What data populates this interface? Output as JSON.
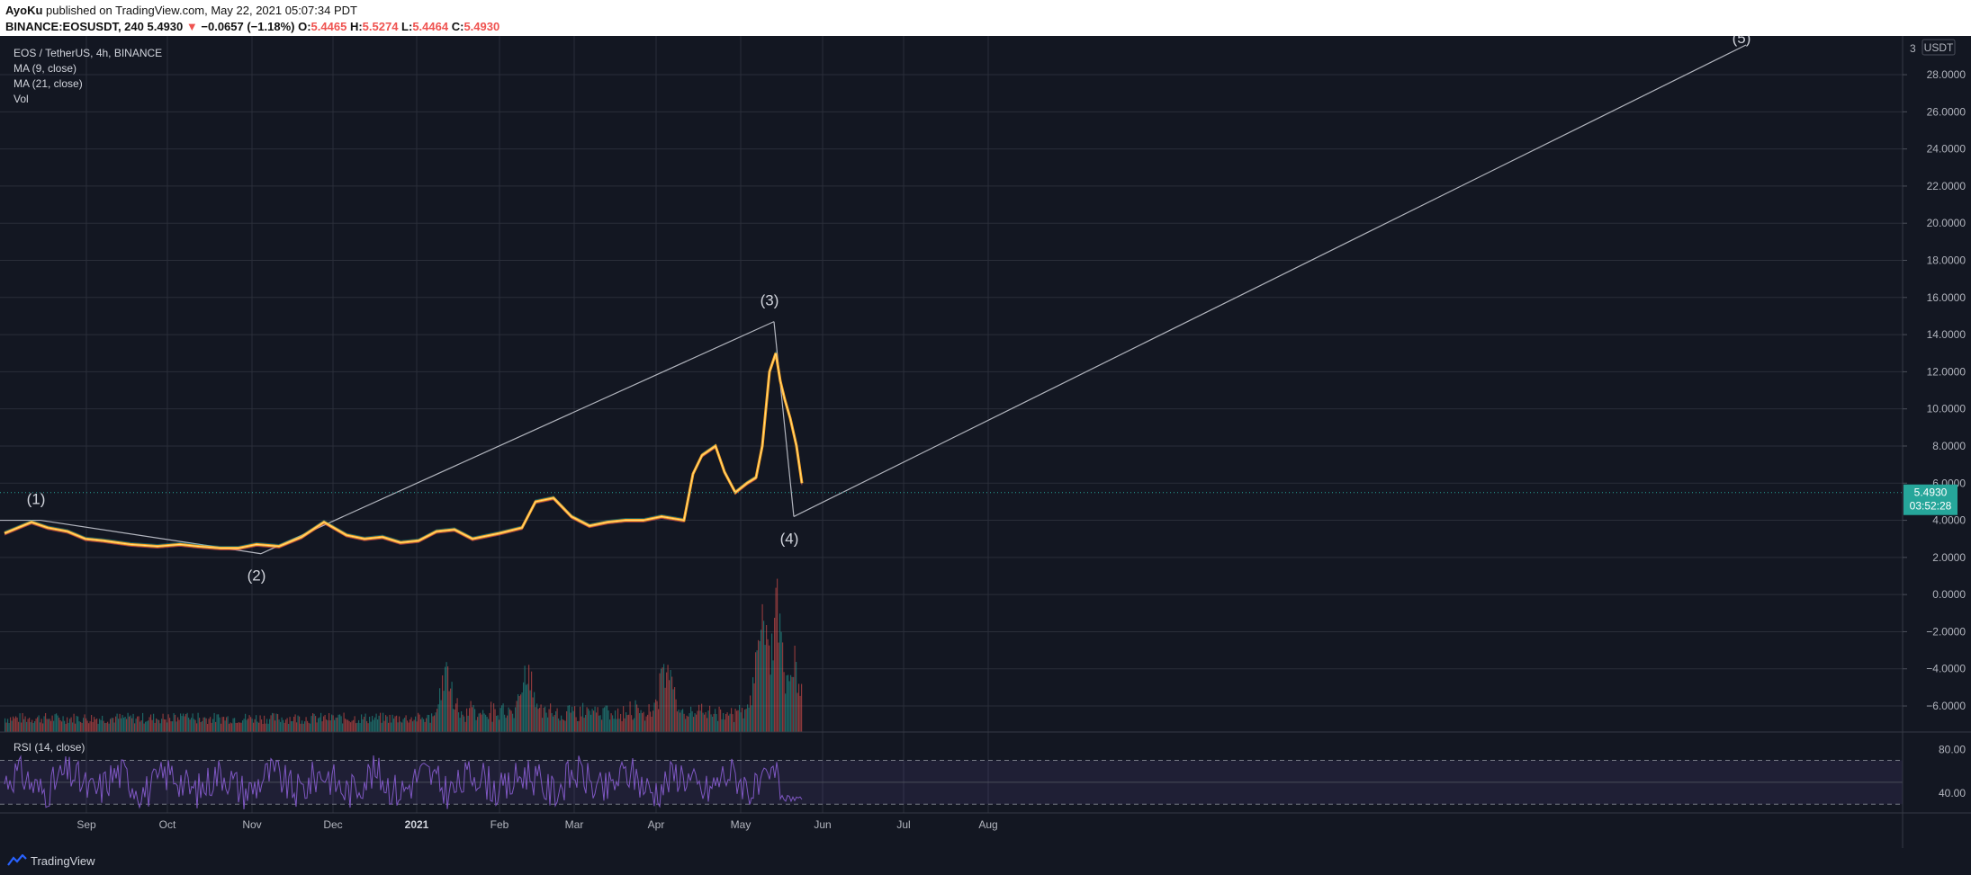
{
  "header": {
    "author": "AyoKu",
    "published": "published on TradingView.com, May 22, 2021 05:07:34 PDT",
    "symbol": "BINANCE:EOSUSDT, 240",
    "price": "5.4930",
    "change_arrow": "▼",
    "change": "−0.0657 (−1.18%)",
    "o_label": "O:",
    "o_value": "5.4465",
    "h_label": "H:",
    "h_value": "5.5274",
    "l_label": "L:",
    "l_value": "5.4464",
    "c_label": "C:",
    "c_value": "5.4930"
  },
  "legend": {
    "title": "EOS / TetherUS, 4h, BINANCE",
    "ma9": "MA (9, close)",
    "ma21": "MA (21, close)",
    "vol": "Vol",
    "rsi": "RSI (14, close)"
  },
  "price_axis": {
    "currency": "USDT",
    "last_price": "5.4930",
    "countdown": "03:52:28",
    "cut_label": "3"
  },
  "footer": {
    "brand": "TradingView"
  },
  "colors": {
    "background": "#131722",
    "grid": "#2a2e39",
    "price_line": "#ffa726",
    "wave_line": "#b2b5be",
    "rsi": "#7e57c2",
    "last_price_badge": "#26a69a",
    "down": "#ef5350",
    "up": "#26a69a"
  },
  "chart_data": [
    {
      "type": "line",
      "title": "EOS / TetherUS, 4h, BINANCE",
      "y_ticks": [
        "28.0000",
        "26.0000",
        "24.0000",
        "22.0000",
        "20.0000",
        "18.0000",
        "16.0000",
        "14.0000",
        "12.0000",
        "10.0000",
        "8.0000",
        "6.0000",
        "4.0000",
        "2.0000",
        "0.0000",
        "−2.0000",
        "−4.0000",
        "−6.0000"
      ],
      "ylim": [
        -7.5,
        29.6
      ],
      "x_ticks": [
        "Sep",
        "Oct",
        "Nov",
        "Dec",
        "2021",
        "Feb",
        "Mar",
        "Apr",
        "May",
        "Jun",
        "Jul",
        "Aug"
      ],
      "grid": true,
      "series": [
        {
          "name": "EOS / TetherUS",
          "x": [
            0,
            10,
            30,
            48,
            70,
            90,
            110,
            140,
            170,
            195,
            215,
            240,
            260,
            280,
            305,
            330,
            355,
            380,
            400,
            420,
            440,
            460,
            480,
            500,
            520,
            550,
            575,
            590,
            610,
            630,
            650,
            670,
            690,
            710,
            730,
            755,
            765,
            775,
            790,
            800,
            812,
            825,
            835,
            842,
            850,
            857,
            862,
            867,
            873,
            880,
            886
          ],
          "y": [
            3.3,
            3.5,
            3.9,
            3.6,
            3.4,
            3.0,
            2.9,
            2.7,
            2.6,
            2.7,
            2.6,
            2.5,
            2.5,
            2.7,
            2.6,
            3.1,
            3.9,
            3.2,
            3.0,
            3.1,
            2.8,
            2.9,
            3.4,
            3.5,
            3.0,
            3.3,
            3.6,
            5.0,
            5.2,
            4.2,
            3.7,
            3.9,
            4.0,
            4.0,
            4.2,
            4.0,
            6.5,
            7.5,
            8.0,
            6.6,
            5.5,
            6.0,
            6.3,
            8.0,
            12.0,
            13.0,
            11.5,
            10.5,
            9.5,
            8.0,
            6.0
          ]
        }
      ],
      "last_value": 5.493,
      "wave_points": [
        {
          "label": "(1)",
          "x": 40,
          "y": 4.0
        },
        {
          "label": "(2)",
          "x": 285,
          "y": 2.2
        },
        {
          "label": "(3)",
          "x": 855,
          "y": 14.7
        },
        {
          "label": "(4)",
          "x": 877,
          "y": 4.2
        },
        {
          "label": "(5)",
          "x": 1935,
          "y": 29.6
        }
      ]
    },
    {
      "type": "bar",
      "title": "Vol",
      "x_range": [
        0,
        886
      ],
      "spikes": [
        {
          "x": 200,
          "v": 0.15
        },
        {
          "x": 490,
          "v": 0.5
        },
        {
          "x": 580,
          "v": 0.45
        },
        {
          "x": 735,
          "v": 0.55
        },
        {
          "x": 842,
          "v": 0.85
        },
        {
          "x": 857,
          "v": 1.0
        },
        {
          "x": 877,
          "v": 0.6
        }
      ]
    },
    {
      "type": "line",
      "title": "RSI (14, close)",
      "y_ticks": [
        "80.00",
        "40.00"
      ],
      "ylim": [
        22,
        95
      ],
      "bands": [
        70,
        30
      ],
      "midline": 50,
      "x_range": [
        0,
        886
      ]
    }
  ]
}
